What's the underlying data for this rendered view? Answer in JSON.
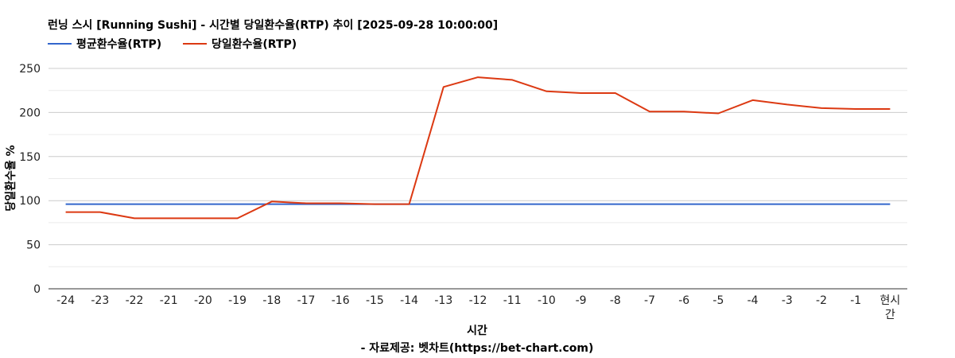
{
  "chart_data": {
    "type": "line",
    "title": "런닝 스시 [Running Sushi] - 시간별 당일환수율(RTP) 추이 [2025-09-28 10:00:00]",
    "xlabel": "시간",
    "source": "- 자료제공: 벳차트(https://bet-chart.com)",
    "ylabel": "당일환수율 %",
    "ylim": [
      0,
      250
    ],
    "yticks": [
      0,
      50,
      100,
      150,
      200,
      250
    ],
    "categories": [
      "-24",
      "-23",
      "-22",
      "-21",
      "-20",
      "-19",
      "-18",
      "-17",
      "-16",
      "-15",
      "-14",
      "-13",
      "-12",
      "-11",
      "-10",
      "-9",
      "-8",
      "-7",
      "-6",
      "-5",
      "-4",
      "-3",
      "-2",
      "-1",
      "현시간"
    ],
    "series": [
      {
        "name": "평균환수율(RTP)",
        "color": "#3366cc",
        "values": [
          96,
          96,
          96,
          96,
          96,
          96,
          96,
          96,
          96,
          96,
          96,
          96,
          96,
          96,
          96,
          96,
          96,
          96,
          96,
          96,
          96,
          96,
          96,
          96,
          96
        ]
      },
      {
        "name": "당일환수율(RTP)",
        "color": "#dc3912",
        "values": [
          87,
          87,
          80,
          80,
          80,
          80,
          99,
          97,
          97,
          96,
          96,
          229,
          240,
          237,
          224,
          222,
          222,
          201,
          201,
          199,
          214,
          209,
          205,
          204,
          204
        ]
      }
    ],
    "grid": true,
    "legend_position": "top-left"
  }
}
